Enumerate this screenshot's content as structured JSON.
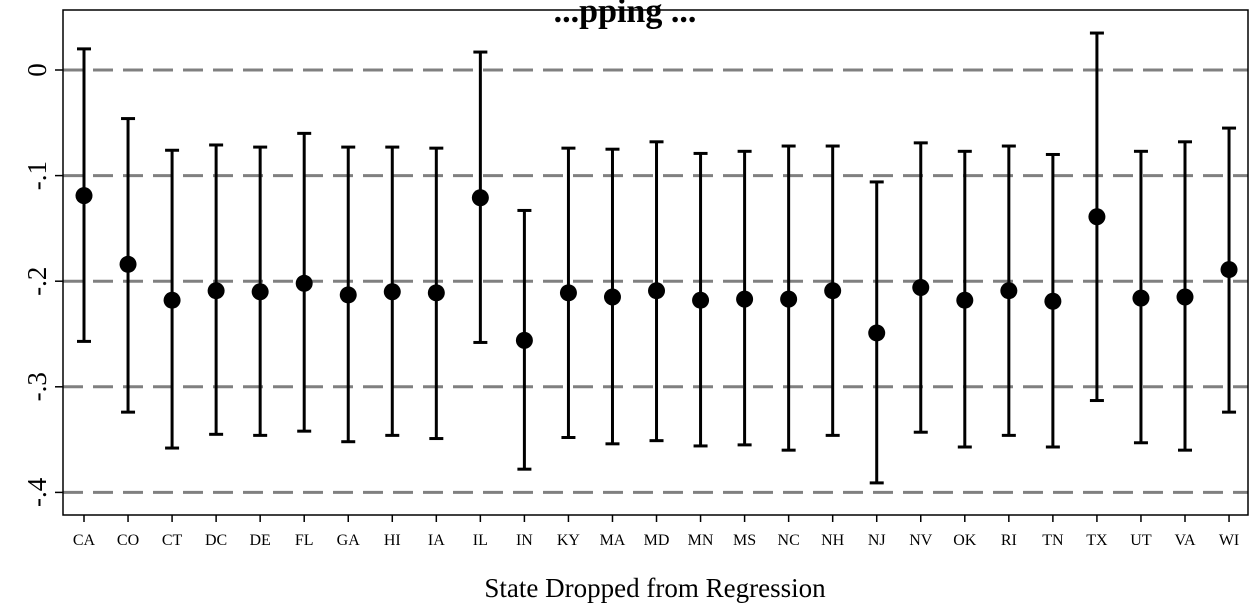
{
  "chart_data": {
    "type": "scatter",
    "subtype": "point-estimate-with-confidence-intervals",
    "title": "...pping ...",
    "xlabel": "State Dropped from Regression",
    "ylabel": "",
    "ylim": [
      -0.42,
      0.055
    ],
    "yticks": [
      0,
      -0.1,
      -0.2,
      -0.3,
      -0.4
    ],
    "ytick_labels": [
      "0",
      "-.1",
      "-.2",
      "-.3",
      "-.4"
    ],
    "grid": "horizontal dashed at y ticks",
    "marker_color": "#000000",
    "grid_color": "#808080",
    "categories": [
      "CA",
      "CO",
      "CT",
      "DC",
      "DE",
      "FL",
      "GA",
      "HI",
      "IA",
      "IL",
      "IN",
      "KY",
      "MA",
      "MD",
      "MN",
      "MS",
      "NC",
      "NH",
      "NJ",
      "NV",
      "OK",
      "RI",
      "TN",
      "TX",
      "UT",
      "VA",
      "WI"
    ],
    "estimates": [
      -0.119,
      -0.184,
      -0.218,
      -0.209,
      -0.21,
      -0.202,
      -0.213,
      -0.21,
      -0.211,
      -0.121,
      -0.256,
      -0.211,
      -0.215,
      -0.209,
      -0.218,
      -0.217,
      -0.217,
      -0.209,
      -0.249,
      -0.206,
      -0.218,
      -0.209,
      -0.219,
      -0.139,
      -0.216,
      -0.215,
      -0.189
    ],
    "ci_lower": [
      -0.257,
      -0.324,
      -0.358,
      -0.345,
      -0.346,
      -0.342,
      -0.352,
      -0.346,
      -0.349,
      -0.258,
      -0.378,
      -0.348,
      -0.354,
      -0.351,
      -0.356,
      -0.355,
      -0.36,
      -0.346,
      -0.391,
      -0.343,
      -0.357,
      -0.346,
      -0.357,
      -0.313,
      -0.353,
      -0.36,
      -0.324
    ],
    "ci_upper": [
      0.02,
      -0.046,
      -0.076,
      -0.071,
      -0.073,
      -0.06,
      -0.073,
      -0.073,
      -0.074,
      0.017,
      -0.133,
      -0.074,
      -0.075,
      -0.068,
      -0.079,
      -0.077,
      -0.072,
      -0.072,
      -0.106,
      -0.069,
      -0.077,
      -0.072,
      -0.08,
      0.035,
      -0.077,
      -0.068,
      -0.055
    ]
  }
}
